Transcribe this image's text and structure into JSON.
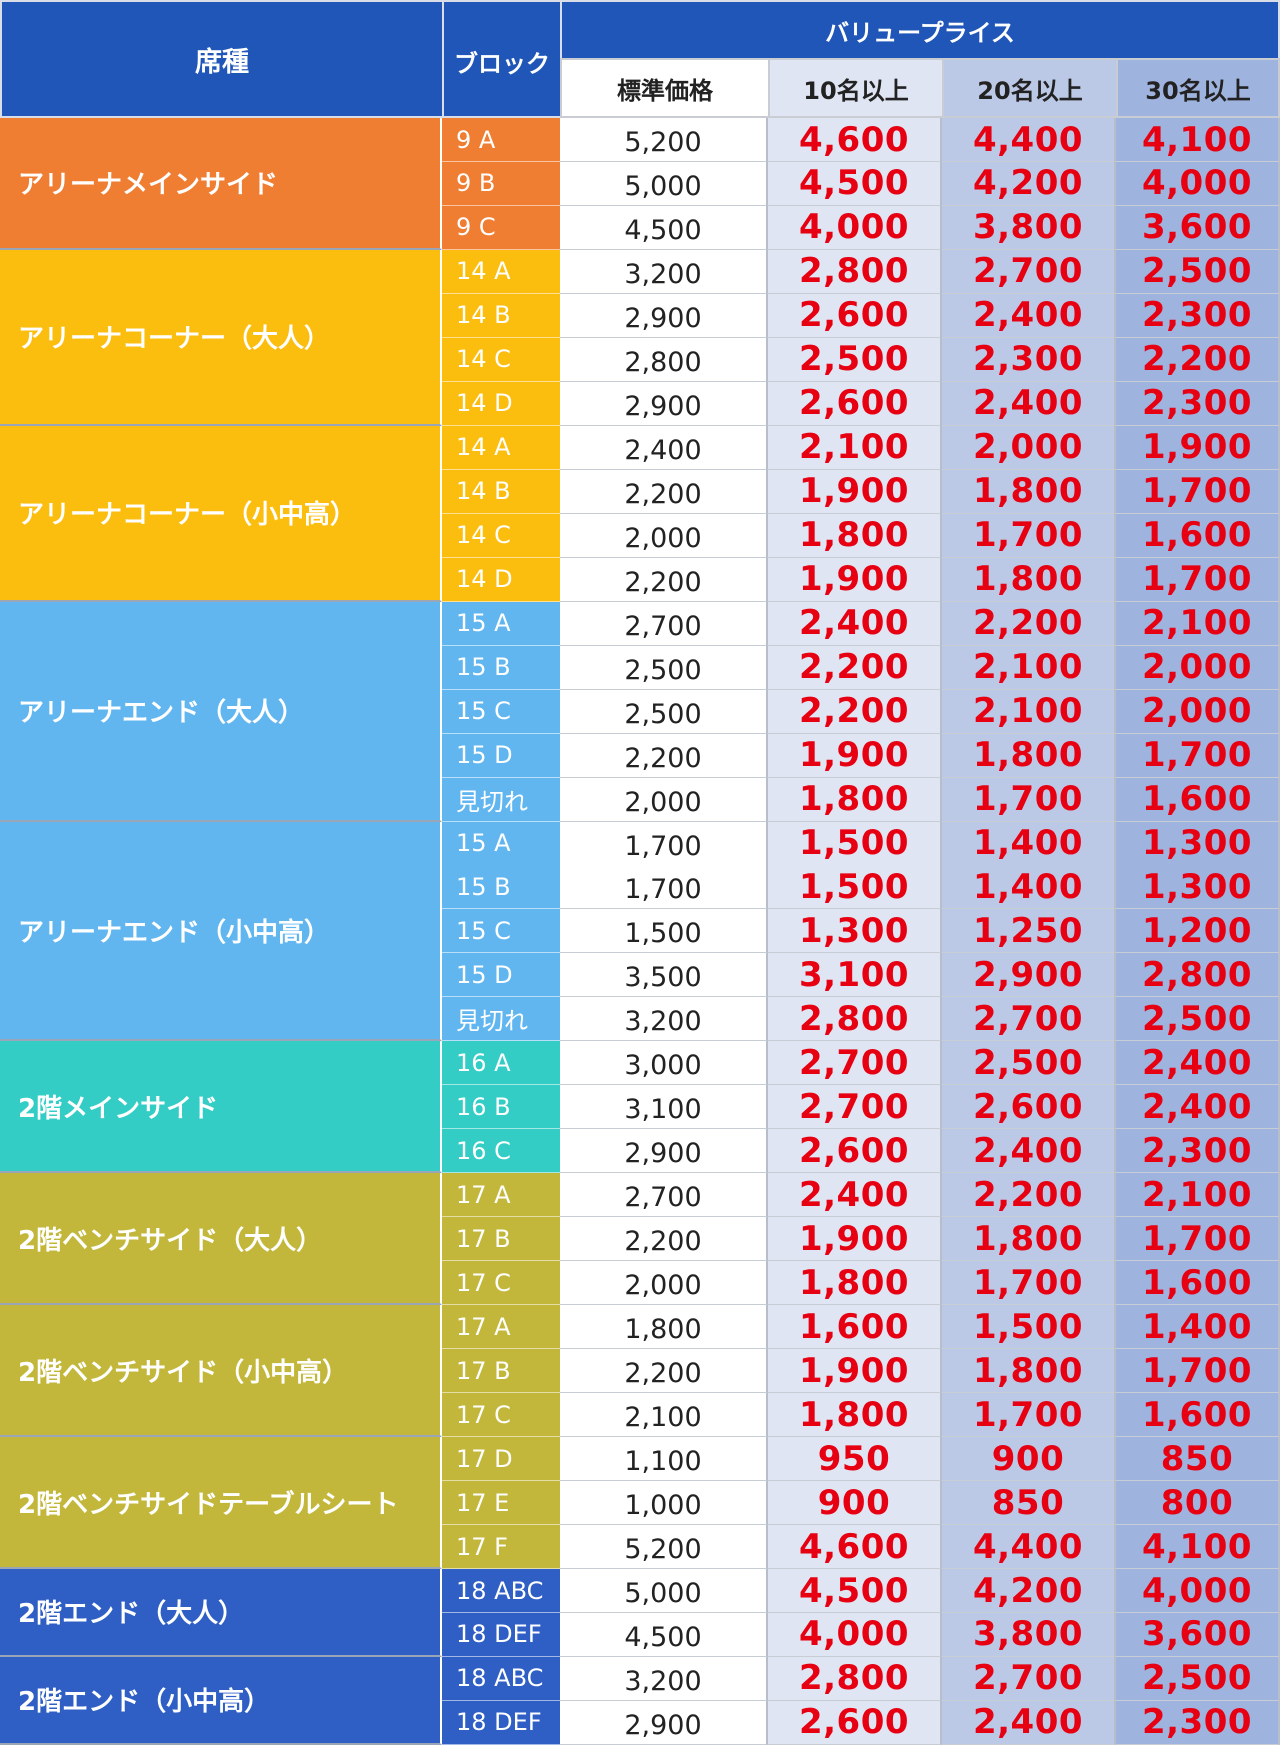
{
  "header": {
    "seat_label": "席種",
    "block_label": "ブロック",
    "value_price_label": "バリュープライス",
    "standard_label": "標準価格",
    "tier10_label": "10名以上",
    "tier20_label": "20名以上",
    "tier30_label": "30名以上"
  },
  "colors": {
    "header_blue": "#1f56b8",
    "price_red": "#e60012"
  },
  "groups": [
    {
      "name": "アリーナメインサイド",
      "color": "#ef7d32",
      "rows": [
        {
          "block": "9 A",
          "standard": "5,200",
          "p10": "4,600",
          "p20": "4,400",
          "p30": "4,100"
        },
        {
          "block": "9 B",
          "standard": "5,000",
          "p10": "4,500",
          "p20": "4,200",
          "p30": "4,000"
        },
        {
          "block": "9 C",
          "standard": "4,500",
          "p10": "4,000",
          "p20": "3,800",
          "p30": "3,600"
        }
      ]
    },
    {
      "name": "アリーナコーナー（大人）",
      "color": "#fbbd0e",
      "rows": [
        {
          "block": "14 A",
          "standard": "3,200",
          "p10": "2,800",
          "p20": "2,700",
          "p30": "2,500"
        },
        {
          "block": "14 B",
          "standard": "2,900",
          "p10": "2,600",
          "p20": "2,400",
          "p30": "2,300"
        },
        {
          "block": "14 C",
          "standard": "2,800",
          "p10": "2,500",
          "p20": "2,300",
          "p30": "2,200"
        },
        {
          "block": "14 D",
          "standard": "2,900",
          "p10": "2,600",
          "p20": "2,400",
          "p30": "2,300"
        }
      ]
    },
    {
      "name": "アリーナコーナー（小中高）",
      "color": "#fbbd0e",
      "rows": [
        {
          "block": "14 A",
          "standard": "2,400",
          "p10": "2,100",
          "p20": "2,000",
          "p30": "1,900"
        },
        {
          "block": "14 B",
          "standard": "2,200",
          "p10": "1,900",
          "p20": "1,800",
          "p30": "1,700"
        },
        {
          "block": "14 C",
          "standard": "2,000",
          "p10": "1,800",
          "p20": "1,700",
          "p30": "1,600"
        },
        {
          "block": "14 D",
          "standard": "2,200",
          "p10": "1,900",
          "p20": "1,800",
          "p30": "1,700"
        }
      ]
    },
    {
      "name": "アリーナエンド（大人）",
      "color": "#62b6f0",
      "rows": [
        {
          "block": "15 A",
          "standard": "2,700",
          "p10": "2,400",
          "p20": "2,200",
          "p30": "2,100"
        },
        {
          "block": "15 B",
          "standard": "2,500",
          "p10": "2,200",
          "p20": "2,100",
          "p30": "2,000"
        },
        {
          "block": "15 C",
          "standard": "2,500",
          "p10": "2,200",
          "p20": "2,100",
          "p30": "2,000"
        },
        {
          "block": "15 D",
          "standard": "2,200",
          "p10": "1,900",
          "p20": "1,800",
          "p30": "1,700"
        },
        {
          "block": "見切れ",
          "standard": "2,000",
          "p10": "1,800",
          "p20": "1,700",
          "p30": "1,600"
        }
      ]
    },
    {
      "name": "アリーナエンド（小中高）",
      "color": "#62b6f0",
      "rows": [
        {
          "block": "15 A",
          "standard": "1,700",
          "p10": "1,500",
          "p20": "1,400",
          "p30": "1,300"
        },
        {
          "block": "15 B",
          "standard": "1,700",
          "p10": "1,500",
          "p20": "1,400",
          "p30": "1,300"
        },
        {
          "block": "15 C",
          "standard": "1,500",
          "p10": "1,300",
          "p20": "1,250",
          "p30": "1,200"
        },
        {
          "block": "15 D",
          "standard": "3,500",
          "p10": "3,100",
          "p20": "2,900",
          "p30": "2,800"
        },
        {
          "block": "見切れ",
          "standard": "3,200",
          "p10": "2,800",
          "p20": "2,700",
          "p30": "2,500"
        }
      ]
    },
    {
      "name": "2階メインサイド",
      "color": "#33cdc6",
      "rows": [
        {
          "block": "16 A",
          "standard": "3,000",
          "p10": "2,700",
          "p20": "2,500",
          "p30": "2,400"
        },
        {
          "block": "16 B",
          "standard": "3,100",
          "p10": "2,700",
          "p20": "2,600",
          "p30": "2,400"
        },
        {
          "block": "16 C",
          "standard": "2,900",
          "p10": "2,600",
          "p20": "2,400",
          "p30": "2,300"
        }
      ]
    },
    {
      "name": "2階ベンチサイド（大人）",
      "color": "#c3b73b",
      "rows": [
        {
          "block": "17 A",
          "standard": "2,700",
          "p10": "2,400",
          "p20": "2,200",
          "p30": "2,100"
        },
        {
          "block": "17 B",
          "standard": "2,200",
          "p10": "1,900",
          "p20": "1,800",
          "p30": "1,700"
        },
        {
          "block": "17 C",
          "standard": "2,000",
          "p10": "1,800",
          "p20": "1,700",
          "p30": "1,600"
        }
      ]
    },
    {
      "name": "2階ベンチサイド（小中高）",
      "color": "#c3b73b",
      "rows": [
        {
          "block": "17 A",
          "standard": "1,800",
          "p10": "1,600",
          "p20": "1,500",
          "p30": "1,400"
        },
        {
          "block": "17 B",
          "standard": "2,200",
          "p10": "1,900",
          "p20": "1,800",
          "p30": "1,700"
        },
        {
          "block": "17 C",
          "standard": "2,100",
          "p10": "1,800",
          "p20": "1,700",
          "p30": "1,600"
        }
      ]
    },
    {
      "name": "2階ベンチサイドテーブルシート",
      "color": "#c3b73b",
      "rows": [
        {
          "block": "17 D",
          "standard": "1,100",
          "p10": "950",
          "p20": "900",
          "p30": "850"
        },
        {
          "block": "17 E",
          "standard": "1,000",
          "p10": "900",
          "p20": "850",
          "p30": "800"
        },
        {
          "block": "17 F",
          "standard": "5,200",
          "p10": "4,600",
          "p20": "4,400",
          "p30": "4,100"
        }
      ]
    },
    {
      "name": "2階エンド（大人）",
      "color": "#2f5fc4",
      "rows": [
        {
          "block": "18 ABC",
          "standard": "5,000",
          "p10": "4,500",
          "p20": "4,200",
          "p30": "4,000"
        },
        {
          "block": "18 DEF",
          "standard": "4,500",
          "p10": "4,000",
          "p20": "3,800",
          "p30": "3,600"
        }
      ]
    },
    {
      "name": "2階エンド（小中高）",
      "color": "#2f5fc4",
      "rows": [
        {
          "block": "18 ABC",
          "standard": "3,200",
          "p10": "2,800",
          "p20": "2,700",
          "p30": "2,500"
        },
        {
          "block": "18 DEF",
          "standard": "2,900",
          "p10": "2,600",
          "p20": "2,400",
          "p30": "2,300"
        }
      ]
    }
  ]
}
